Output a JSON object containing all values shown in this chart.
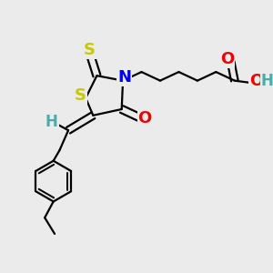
{
  "bg_color": "#ebebeb",
  "atom_colors": {
    "S": "#c8c800",
    "N": "#0000ee",
    "O": "#ee0000",
    "H": "#4daaaa",
    "C": "#000000"
  },
  "bond_color": "#000000",
  "bond_width": 1.6,
  "fig_size": [
    3.0,
    3.0
  ],
  "dpi": 100,
  "xlim": [
    0,
    10
  ],
  "ylim": [
    0,
    10
  ]
}
